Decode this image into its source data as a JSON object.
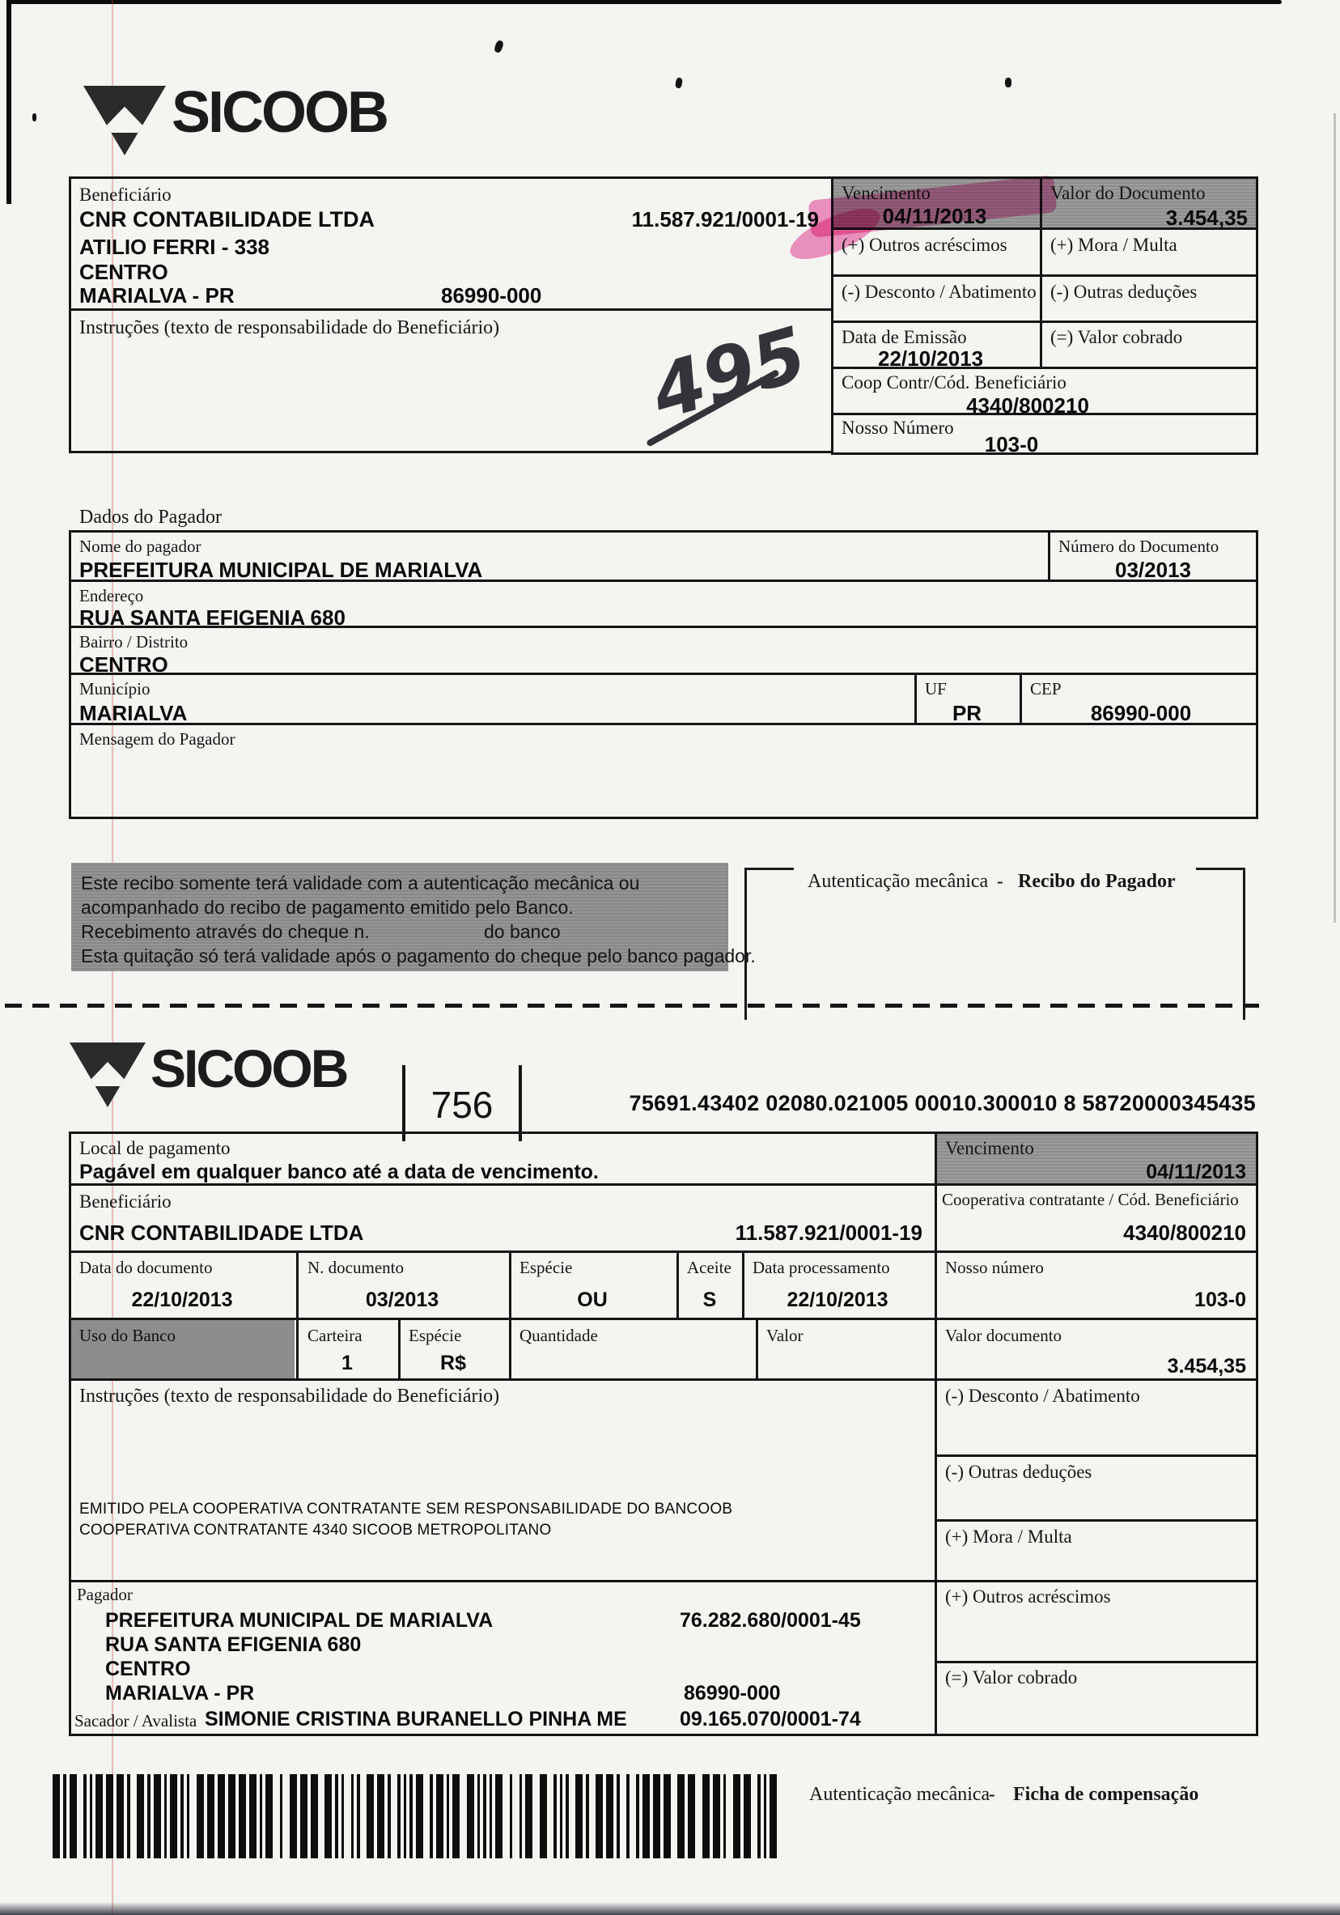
{
  "brand": {
    "name": "SICOOB",
    "bank_code": "756",
    "digitable_line": "75691.43402 02080.021005 00010.300010 8 58720000345435"
  },
  "top": {
    "beneficiario_label": "Beneficiário",
    "beneficiario_nome": "CNR CONTABILIDADE LTDA",
    "beneficiario_cnpj": "11.587.921/0001-19",
    "endereco": "ATILIO FERRI  -  338",
    "bairro": "CENTRO",
    "cidade": "MARIALVA - PR",
    "cep": "86990-000",
    "instrucoes_label": "Instruções (texto de responsabilidade do Beneficiário)",
    "vencimento_label": "Vencimento",
    "vencimento": "04/11/2013",
    "valor_documento_label": "Valor do Documento",
    "valor_documento": "3.454,35",
    "outros_acrescimos_label": "(+) Outros acréscimos",
    "mora_multa_label": "(+) Mora / Multa",
    "desconto_label": "(-) Desconto / Abatimento",
    "outras_deducoes_label": "(-) Outras deduções",
    "data_emissao_label": "Data de Emissão",
    "data_emissao": "22/10/2013",
    "valor_cobrado_label": "(=) Valor cobrado",
    "coop_label": "Coop Contr/Cód. Beneficiário",
    "coop": "4340/800210",
    "nosso_numero_label": "Nosso Número",
    "nosso_numero": "103-0",
    "anotacao_manuscrita": "495"
  },
  "pagador": {
    "section_label": "Dados do Pagador",
    "nome_label": "Nome do pagador",
    "nome": "PREFEITURA MUNICIPAL DE MARIALVA",
    "numero_documento_label": "Número do Documento",
    "numero_documento": "03/2013",
    "endereco_label": "Endereço",
    "endereco": "RUA SANTA EFIGENIA 680",
    "bairro_label": "Bairro / Distrito",
    "bairro": "CENTRO",
    "municipio_label": "Município",
    "municipio": "MARIALVA",
    "uf_label": "UF",
    "uf": "PR",
    "cep_label": "CEP",
    "cep": "86990-000",
    "mensagem_label": "Mensagem do Pagador"
  },
  "recibo": {
    "aviso_linha1": "Este recibo somente terá validade com  a autenticação mecânica ou",
    "aviso_linha2": "acompanhado do recibo de pagamento emitido pelo Banco.",
    "aviso_linha3a": "Recebimento através do cheque n.",
    "aviso_linha3b": "do banco",
    "aviso_linha4": "Esta quitação só terá validade após o pagamento do cheque pelo banco pagador.",
    "autenticacao_label": "Autenticação mecânica",
    "separador": "-",
    "titulo": "Recibo do Pagador"
  },
  "ficha": {
    "local_label": "Local de pagamento",
    "local": "Pagável em qualquer banco até a data de vencimento.",
    "vencimento_label": "Vencimento",
    "vencimento": "04/11/2013",
    "beneficiario_label": "Beneficiário",
    "beneficiario_nome": "CNR CONTABILIDADE LTDA",
    "beneficiario_cnpj": "11.587.921/0001-19",
    "coop_label": "Cooperativa contratante / Cód. Beneficiário",
    "coop": "4340/800210",
    "data_documento_label": "Data do documento",
    "data_documento": "22/10/2013",
    "n_documento_label": "N. documento",
    "n_documento": "03/2013",
    "especie_label": "Espécie",
    "especie": "OU",
    "aceite_label": "Aceite",
    "aceite": "S",
    "data_processamento_label": "Data processamento",
    "data_processamento": "22/10/2013",
    "nosso_numero_label": "Nosso número",
    "nosso_numero": "103-0",
    "uso_banco_label": "Uso do Banco",
    "carteira_label": "Carteira",
    "carteira": "1",
    "especie_moeda_label": "Espécie",
    "especie_moeda": "R$",
    "quantidade_label": "Quantidade",
    "valor_label": "Valor",
    "valor_documento_label": "Valor documento",
    "valor_documento": "3.454,35",
    "instrucoes_label": "Instruções (texto de responsabilidade do Beneficiário)",
    "emitido_linha1": "EMITIDO PELA COOPERATIVA CONTRATANTE SEM RESPONSABILIDADE DO BANCOOB",
    "emitido_linha2": "COOPERATIVA CONTRATANTE 4340 SICOOB METROPOLITANO",
    "desconto_label": "(-) Desconto / Abatimento",
    "outras_deducoes_label": "(-) Outras deduções",
    "mora_multa_label": "(+) Mora / Multa",
    "outros_acrescimos_label": "(+) Outros acréscimos",
    "valor_cobrado_label": "(=) Valor cobrado",
    "pagador_label": "Pagador",
    "pagador_nome": "PREFEITURA MUNICIPAL DE MARIALVA",
    "pagador_cnpj": "76.282.680/0001-45",
    "pagador_endereco": "RUA SANTA EFIGENIA 680",
    "pagador_bairro": "CENTRO",
    "pagador_cidade": "MARIALVA - PR",
    "pagador_cep": "86990-000",
    "sacador_label": "Sacador / Avalista",
    "sacador_nome": "SIMONIE CRISTINA BURANELLO PINHA ME",
    "sacador_cnpj": "09.165.070/0001-74",
    "autenticacao_label": "Autenticação mecânica",
    "separador": "-",
    "titulo": "Ficha de compensação"
  },
  "colors": {
    "highlighter": "#e93e98",
    "cell_gray": "#959595",
    "line": "#151515"
  }
}
